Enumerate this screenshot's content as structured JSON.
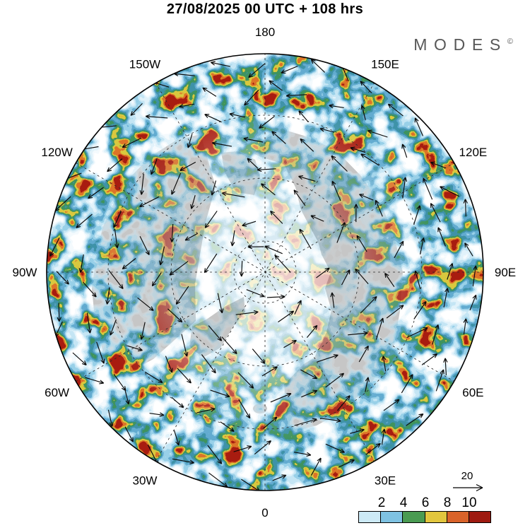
{
  "header": {
    "title": "27/08/2025  00 UTC  + 108 hrs"
  },
  "logo": {
    "brand": "MODES",
    "mark": "©"
  },
  "map": {
    "longitude_labels": [
      {
        "label": "180",
        "angle_deg": 0
      },
      {
        "label": "150E",
        "angle_deg": 30
      },
      {
        "label": "120E",
        "angle_deg": 60
      },
      {
        "label": "90E",
        "angle_deg": 90
      },
      {
        "label": "60E",
        "angle_deg": 120
      },
      {
        "label": "30E",
        "angle_deg": 150
      },
      {
        "label": "0",
        "angle_deg": 180
      },
      {
        "label": "30W",
        "angle_deg": 210
      },
      {
        "label": "60W",
        "angle_deg": 240
      },
      {
        "label": "90W",
        "angle_deg": 270
      },
      {
        "label": "120W",
        "angle_deg": 300
      },
      {
        "label": "150W",
        "angle_deg": 330
      }
    ],
    "land_color": "#c6c6c6",
    "graticule_latitude_radii": [
      44,
      133,
      222
    ]
  },
  "field": {
    "band_colors": [
      "#ffffff",
      "#f2f9fc",
      "#e0f1f9",
      "#cdeaf6",
      "#b5e0f2",
      "#8fcce6",
      "#63abd0",
      "#3f93a8",
      "#3f9460",
      "#d9c93f",
      "#dd7428",
      "#a81c10"
    ],
    "band_alphas": [
      0,
      0,
      0.35,
      0.6,
      0.8,
      0.92,
      1,
      1,
      1,
      1,
      1,
      1
    ]
  },
  "colorbar": {
    "tick_labels": [
      "2",
      "4",
      "6",
      "8",
      "10"
    ],
    "colors": [
      "#cdeaf6",
      "#7fc2e2",
      "#4a9b52",
      "#e2c63e",
      "#d9632a",
      "#9e1a10"
    ]
  },
  "ref_arrow": {
    "label": "20"
  }
}
